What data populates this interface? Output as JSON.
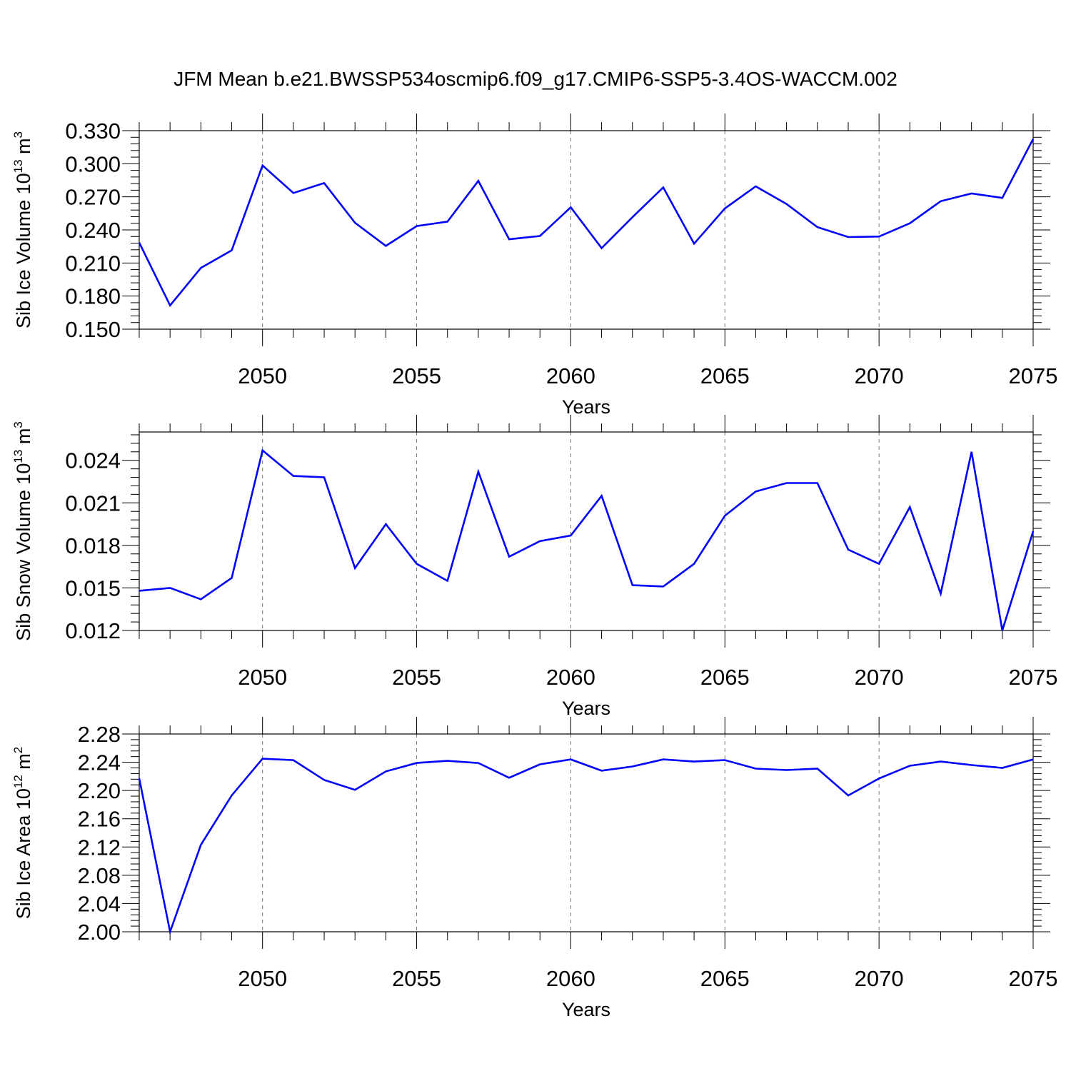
{
  "title": "JFM Mean b.e21.BWSSP534oscmip6.f09_g17.CMIP6-SSP5-3.4OS-WACCM.002",
  "colors": {
    "line": "#0000ff",
    "axis": "#000000",
    "grid": "#777777",
    "background": "#ffffff"
  },
  "chart_data": [
    {
      "type": "line",
      "ylabel_parts": {
        "text": "Sib Ice Volume 10",
        "exp": "13",
        "unit": " m",
        "unit_exp": "3"
      },
      "xlabel": "Years",
      "xlim": [
        2046,
        2075
      ],
      "ylim": [
        0.15,
        0.33
      ],
      "xticks": [
        2050,
        2055,
        2060,
        2065,
        2070,
        2075
      ],
      "yticks": [
        0.15,
        0.18,
        0.21,
        0.24,
        0.27,
        0.3,
        0.33
      ],
      "yticklabels": [
        "0.150",
        "0.180",
        "0.210",
        "0.240",
        "0.270",
        "0.300",
        "0.330"
      ],
      "series_name": "sib-ice-volume",
      "x": [
        2046,
        2047,
        2048,
        2049,
        2050,
        2051,
        2052,
        2053,
        2054,
        2055,
        2056,
        2057,
        2058,
        2059,
        2060,
        2061,
        2062,
        2063,
        2064,
        2065,
        2066,
        2067,
        2068,
        2069,
        2070,
        2071,
        2072,
        2073,
        2074,
        2075
      ],
      "values": [
        0.2285,
        0.1715,
        0.2055,
        0.2215,
        0.2985,
        0.2735,
        0.2825,
        0.2465,
        0.2255,
        0.2435,
        0.2475,
        0.2845,
        0.2315,
        0.2345,
        0.2605,
        0.2235,
        0.2515,
        0.2785,
        0.2275,
        0.2595,
        0.2795,
        0.2635,
        0.2425,
        0.2335,
        0.234,
        0.246,
        0.266,
        0.273,
        0.269,
        0.3225
      ]
    },
    {
      "type": "line",
      "ylabel_parts": {
        "text": "Sib Snow Volume 10",
        "exp": "13",
        "unit": " m",
        "unit_exp": "3"
      },
      "xlabel": "Years",
      "xlim": [
        2046,
        2075
      ],
      "ylim": [
        0.012,
        0.026
      ],
      "xticks": [
        2050,
        2055,
        2060,
        2065,
        2070,
        2075
      ],
      "yticks": [
        0.012,
        0.015,
        0.018,
        0.021,
        0.024
      ],
      "yticklabels": [
        "0.012",
        "0.015",
        "0.018",
        "0.021",
        "0.024"
      ],
      "series_name": "sib-snow-volume",
      "x": [
        2046,
        2047,
        2048,
        2049,
        2050,
        2051,
        2052,
        2053,
        2054,
        2055,
        2056,
        2057,
        2058,
        2059,
        2060,
        2061,
        2062,
        2063,
        2064,
        2065,
        2066,
        2067,
        2068,
        2069,
        2070,
        2071,
        2072,
        2073,
        2074,
        2075
      ],
      "values": [
        0.0148,
        0.015,
        0.0142,
        0.0157,
        0.0247,
        0.0229,
        0.0228,
        0.0164,
        0.0195,
        0.0167,
        0.0155,
        0.0232,
        0.0172,
        0.0183,
        0.0187,
        0.0215,
        0.0152,
        0.0151,
        0.0167,
        0.0201,
        0.0218,
        0.0224,
        0.0224,
        0.0177,
        0.0167,
        0.0207,
        0.0146,
        0.0246,
        0.012,
        0.019
      ]
    },
    {
      "type": "line",
      "ylabel_parts": {
        "text": "Sib Ice Area 10",
        "exp": "12",
        "unit": " m",
        "unit_exp": "2"
      },
      "xlabel": "Years",
      "xlim": [
        2046,
        2075
      ],
      "ylim": [
        2.0,
        2.28
      ],
      "xticks": [
        2050,
        2055,
        2060,
        2065,
        2070,
        2075
      ],
      "yticks": [
        2.0,
        2.04,
        2.08,
        2.12,
        2.16,
        2.2,
        2.24,
        2.28
      ],
      "yticklabels": [
        "2.00",
        "2.04",
        "2.08",
        "2.12",
        "2.16",
        "2.20",
        "2.24",
        "2.28"
      ],
      "series_name": "sib-ice-area",
      "x": [
        2046,
        2047,
        2048,
        2049,
        2050,
        2051,
        2052,
        2053,
        2054,
        2055,
        2056,
        2057,
        2058,
        2059,
        2060,
        2061,
        2062,
        2063,
        2064,
        2065,
        2066,
        2067,
        2068,
        2069,
        2070,
        2071,
        2072,
        2073,
        2074,
        2075
      ],
      "values": [
        2.217,
        2.0,
        2.123,
        2.193,
        2.245,
        2.243,
        2.215,
        2.201,
        2.227,
        2.239,
        2.242,
        2.239,
        2.218,
        2.237,
        2.244,
        2.228,
        2.234,
        2.244,
        2.241,
        2.243,
        2.231,
        2.229,
        2.231,
        2.193,
        2.217,
        2.235,
        2.241,
        2.236,
        2.232,
        2.244
      ]
    }
  ]
}
